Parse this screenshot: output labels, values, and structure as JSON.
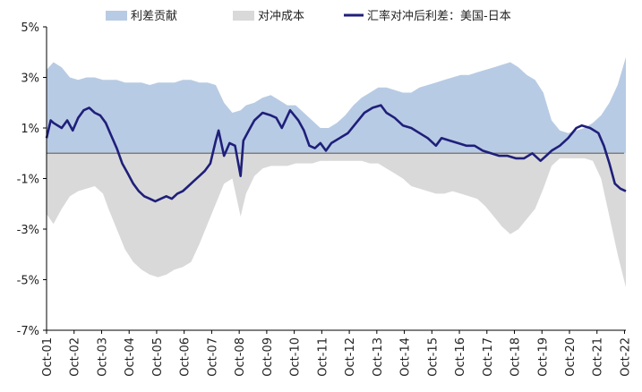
{
  "chart_data": {
    "type": "area",
    "legend_position": "top",
    "grid": false,
    "x_tick_labels": [
      "Oct-01",
      "Oct-02",
      "Oct-03",
      "Oct-04",
      "Oct-05",
      "Oct-06",
      "Oct-07",
      "Oct-08",
      "Oct-09",
      "Oct-10",
      "Oct-11",
      "Oct-12",
      "Oct-13",
      "Oct-14",
      "Oct-15",
      "Oct-16",
      "Oct-17",
      "Oct-18",
      "Oct-19",
      "Oct-20",
      "Oct-21",
      "Oct-22"
    ],
    "y_tick_labels": [
      "5%",
      "3%",
      "1%",
      "-1%",
      "-3%",
      "-5%",
      "-7%"
    ],
    "ylim": [
      -7,
      5
    ],
    "xlim": [
      2001.75,
      2022.8
    ],
    "colors": {
      "spread_area": "#b8cbe4",
      "cost_area": "#d9d9d9",
      "line": "#1f1f7a"
    },
    "series": [
      {
        "name": "利差贡献",
        "kind": "area",
        "x": [
          2001.75,
          2002.0,
          2002.3,
          2002.6,
          2002.9,
          2003.2,
          2003.5,
          2003.8,
          2004.0,
          2004.3,
          2004.6,
          2004.9,
          2005.2,
          2005.5,
          2005.8,
          2006.1,
          2006.4,
          2006.7,
          2007.0,
          2007.3,
          2007.6,
          2007.9,
          2008.2,
          2008.5,
          2008.8,
          2009.0,
          2009.3,
          2009.6,
          2009.9,
          2010.2,
          2010.5,
          2010.8,
          2011.1,
          2011.4,
          2011.7,
          2012.0,
          2012.3,
          2012.6,
          2012.9,
          2013.2,
          2013.5,
          2013.8,
          2014.1,
          2014.4,
          2014.7,
          2015.0,
          2015.3,
          2015.6,
          2015.9,
          2016.2,
          2016.5,
          2016.8,
          2017.1,
          2017.4,
          2017.7,
          2018.0,
          2018.3,
          2018.6,
          2018.9,
          2019.2,
          2019.5,
          2019.8,
          2020.1,
          2020.4,
          2020.7,
          2021.0,
          2021.3,
          2021.6,
          2021.9,
          2022.2,
          2022.5,
          2022.8
        ],
        "values": [
          3.3,
          3.6,
          3.4,
          3.0,
          2.9,
          3.0,
          3.0,
          2.9,
          2.9,
          2.9,
          2.8,
          2.8,
          2.8,
          2.7,
          2.8,
          2.8,
          2.8,
          2.9,
          2.9,
          2.8,
          2.8,
          2.7,
          2.0,
          1.6,
          1.7,
          1.9,
          2.0,
          2.2,
          2.3,
          2.1,
          1.9,
          1.9,
          1.6,
          1.3,
          1.0,
          1.0,
          1.2,
          1.5,
          1.9,
          2.2,
          2.4,
          2.6,
          2.6,
          2.5,
          2.4,
          2.4,
          2.6,
          2.7,
          2.8,
          2.9,
          3.0,
          3.1,
          3.1,
          3.2,
          3.3,
          3.4,
          3.5,
          3.6,
          3.4,
          3.1,
          2.9,
          2.4,
          1.3,
          0.9,
          0.8,
          0.9,
          1.0,
          1.2,
          1.5,
          2.0,
          2.7,
          3.8
        ]
      },
      {
        "name": "对冲成本",
        "kind": "area",
        "x": [
          2001.75,
          2002.0,
          2002.3,
          2002.6,
          2002.9,
          2003.2,
          2003.5,
          2003.8,
          2004.0,
          2004.3,
          2004.6,
          2004.9,
          2005.2,
          2005.5,
          2005.8,
          2006.1,
          2006.4,
          2006.7,
          2007.0,
          2007.3,
          2007.6,
          2007.9,
          2008.2,
          2008.5,
          2008.8,
          2009.0,
          2009.3,
          2009.6,
          2009.9,
          2010.2,
          2010.5,
          2010.8,
          2011.1,
          2011.4,
          2011.7,
          2012.0,
          2012.3,
          2012.6,
          2012.9,
          2013.2,
          2013.5,
          2013.8,
          2014.1,
          2014.4,
          2014.7,
          2015.0,
          2015.3,
          2015.6,
          2015.9,
          2016.2,
          2016.5,
          2016.8,
          2017.1,
          2017.4,
          2017.7,
          2018.0,
          2018.3,
          2018.6,
          2018.9,
          2019.2,
          2019.5,
          2019.8,
          2020.1,
          2020.4,
          2020.7,
          2021.0,
          2021.3,
          2021.6,
          2021.9,
          2022.2,
          2022.5,
          2022.8
        ],
        "values": [
          -2.4,
          -2.8,
          -2.2,
          -1.7,
          -1.5,
          -1.4,
          -1.3,
          -1.6,
          -2.2,
          -3.0,
          -3.8,
          -4.3,
          -4.6,
          -4.8,
          -4.9,
          -4.8,
          -4.6,
          -4.5,
          -4.3,
          -3.6,
          -2.8,
          -2.0,
          -1.2,
          -1.0,
          -2.5,
          -1.6,
          -0.9,
          -0.6,
          -0.5,
          -0.5,
          -0.5,
          -0.4,
          -0.4,
          -0.4,
          -0.3,
          -0.3,
          -0.3,
          -0.3,
          -0.3,
          -0.3,
          -0.4,
          -0.4,
          -0.6,
          -0.8,
          -1.0,
          -1.3,
          -1.4,
          -1.5,
          -1.6,
          -1.6,
          -1.5,
          -1.6,
          -1.7,
          -1.8,
          -2.1,
          -2.5,
          -2.9,
          -3.2,
          -3.0,
          -2.6,
          -2.2,
          -1.4,
          -0.5,
          -0.2,
          -0.2,
          -0.2,
          -0.2,
          -0.3,
          -1.0,
          -2.5,
          -4.0,
          -5.3
        ]
      },
      {
        "name": "汇率对冲后利差：美国-日本",
        "kind": "line",
        "x": [
          2001.75,
          2001.9,
          2002.0,
          2002.3,
          2002.5,
          2002.7,
          2002.9,
          2003.1,
          2003.3,
          2003.5,
          2003.7,
          2003.9,
          2004.1,
          2004.3,
          2004.5,
          2004.7,
          2004.9,
          2005.1,
          2005.3,
          2005.5,
          2005.7,
          2005.9,
          2006.1,
          2006.3,
          2006.5,
          2006.7,
          2006.9,
          2007.1,
          2007.3,
          2007.5,
          2007.7,
          2007.9,
          2008.0,
          2008.2,
          2008.4,
          2008.6,
          2008.8,
          2008.9,
          2009.1,
          2009.3,
          2009.6,
          2009.9,
          2010.1,
          2010.3,
          2010.6,
          2010.9,
          2011.1,
          2011.3,
          2011.5,
          2011.7,
          2011.9,
          2012.1,
          2012.4,
          2012.7,
          2013.0,
          2013.3,
          2013.6,
          2013.9,
          2014.1,
          2014.4,
          2014.7,
          2015.0,
          2015.3,
          2015.6,
          2015.9,
          2016.1,
          2016.4,
          2016.7,
          2017.0,
          2017.3,
          2017.6,
          2017.9,
          2018.2,
          2018.5,
          2018.8,
          2019.1,
          2019.4,
          2019.7,
          2019.9,
          2020.1,
          2020.4,
          2020.7,
          2021.0,
          2021.2,
          2021.5,
          2021.8,
          2022.0,
          2022.2,
          2022.4,
          2022.6,
          2022.8
        ],
        "values": [
          0.6,
          1.3,
          1.2,
          1.0,
          1.3,
          0.9,
          1.4,
          1.7,
          1.8,
          1.6,
          1.5,
          1.2,
          0.7,
          0.2,
          -0.4,
          -0.8,
          -1.2,
          -1.5,
          -1.7,
          -1.8,
          -1.9,
          -1.8,
          -1.7,
          -1.8,
          -1.6,
          -1.5,
          -1.3,
          -1.1,
          -0.9,
          -0.7,
          -0.4,
          0.5,
          0.9,
          -0.1,
          0.4,
          0.3,
          -0.9,
          0.5,
          0.9,
          1.3,
          1.6,
          1.5,
          1.4,
          1.0,
          1.7,
          1.3,
          0.9,
          0.3,
          0.2,
          0.4,
          0.1,
          0.4,
          0.6,
          0.8,
          1.2,
          1.6,
          1.8,
          1.9,
          1.6,
          1.4,
          1.1,
          1.0,
          0.8,
          0.6,
          0.3,
          0.6,
          0.5,
          0.4,
          0.3,
          0.3,
          0.1,
          0.0,
          -0.1,
          -0.1,
          -0.2,
          -0.2,
          0.0,
          -0.3,
          -0.1,
          0.1,
          0.3,
          0.6,
          1.0,
          1.1,
          1.0,
          0.8,
          0.3,
          -0.4,
          -1.2,
          -1.4,
          -1.5
        ]
      }
    ]
  }
}
